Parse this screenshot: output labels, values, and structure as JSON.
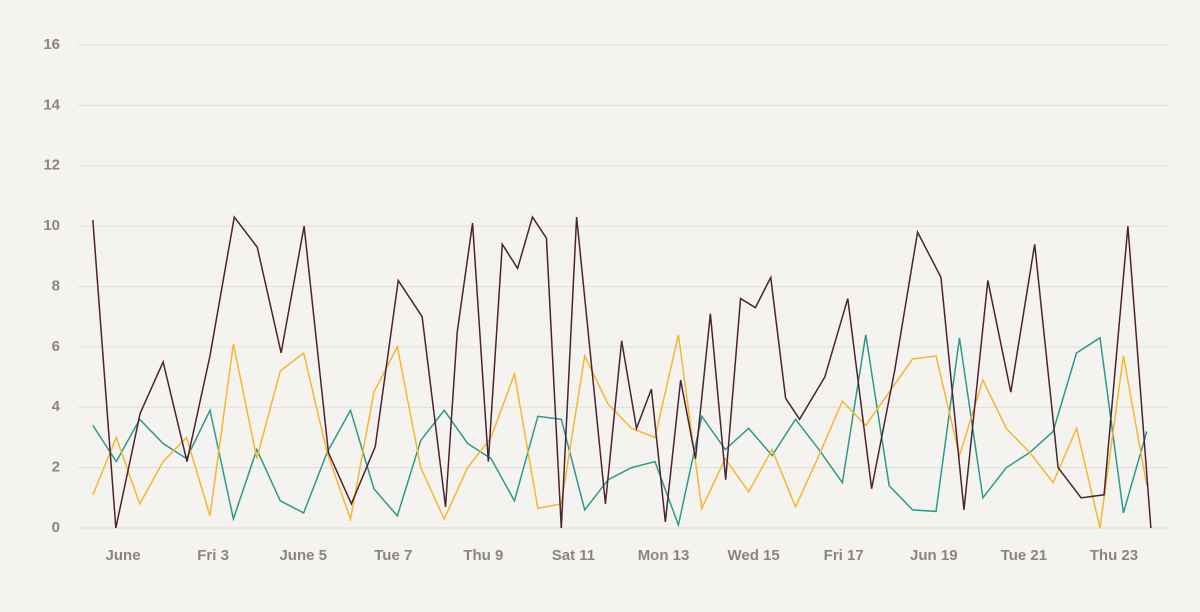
{
  "chart_data": {
    "type": "line",
    "xlim": [
      0,
      24.2
    ],
    "xticks": [
      {
        "value": 1,
        "label": "June"
      },
      {
        "value": 3,
        "label": "Fri 3"
      },
      {
        "value": 5,
        "label": "June 5"
      },
      {
        "value": 7,
        "label": "Tue 7"
      },
      {
        "value": 9,
        "label": "Thu 9"
      },
      {
        "value": 11,
        "label": "Sat 11"
      },
      {
        "value": 13,
        "label": "Mon 13"
      },
      {
        "value": 15,
        "label": "Wed 15"
      },
      {
        "value": 17,
        "label": "Fri 17"
      },
      {
        "value": 19,
        "label": "Jun 19"
      },
      {
        "value": 21,
        "label": "Tue 21"
      },
      {
        "value": 23,
        "label": "Thu 23"
      }
    ],
    "ylim": [
      0,
      16
    ],
    "yticks": [
      0,
      2,
      4,
      6,
      8,
      10,
      12,
      14,
      16
    ],
    "grid": true,
    "series": [
      {
        "color": "#2a9a8c",
        "x": [
          0.33,
          0.85,
          1.37,
          1.89,
          2.41,
          2.93,
          3.45,
          3.97,
          4.49,
          5.01,
          5.53,
          6.05,
          6.57,
          7.09,
          7.61,
          8.13,
          8.65,
          9.17,
          9.69,
          10.21,
          10.73,
          11.25,
          11.77,
          12.29,
          12.81,
          13.33,
          13.85,
          14.37,
          14.89,
          15.41,
          15.93,
          16.45,
          16.97,
          17.49,
          18.01,
          18.53,
          19.05,
          19.57,
          20.09,
          20.61,
          21.13,
          21.65,
          22.17,
          22.69,
          23.21,
          23.73
        ],
        "values": [
          3.4,
          2.2,
          3.6,
          2.8,
          2.3,
          3.9,
          0.3,
          2.6,
          0.9,
          0.5,
          2.5,
          3.9,
          1.3,
          0.4,
          2.9,
          3.9,
          2.8,
          2.3,
          0.9,
          3.7,
          3.6,
          0.6,
          1.6,
          2.0,
          2.2,
          0.1,
          3.7,
          2.6,
          3.3,
          2.4,
          3.6,
          2.6,
          1.5,
          6.4,
          1.4,
          0.6,
          0.55,
          6.3,
          1.0,
          2.0,
          2.5,
          3.2,
          5.8,
          6.3,
          0.5,
          3.2
        ]
      },
      {
        "color": "#f4b731",
        "x": [
          0.33,
          0.85,
          1.37,
          1.89,
          2.41,
          2.93,
          3.45,
          3.97,
          4.49,
          5.01,
          5.53,
          6.05,
          6.57,
          7.09,
          7.61,
          8.13,
          8.65,
          9.17,
          9.69,
          10.21,
          10.73,
          11.25,
          11.77,
          12.29,
          12.81,
          13.33,
          13.85,
          14.37,
          14.89,
          15.41,
          15.93,
          16.45,
          16.97,
          17.49,
          18.01,
          18.53,
          19.05,
          19.57,
          20.09,
          20.61,
          21.13,
          21.65,
          22.17,
          22.69,
          23.21,
          23.73
        ],
        "values": [
          1.1,
          3.0,
          0.8,
          2.2,
          3.0,
          0.4,
          6.1,
          2.3,
          5.2,
          5.8,
          2.5,
          0.3,
          4.5,
          6.0,
          2.0,
          0.3,
          2.0,
          3.0,
          5.1,
          0.65,
          0.8,
          5.7,
          4.1,
          3.3,
          3.0,
          6.4,
          0.65,
          2.3,
          1.2,
          2.6,
          0.7,
          2.4,
          4.2,
          3.4,
          4.5,
          5.6,
          5.7,
          2.4,
          4.9,
          3.3,
          2.5,
          1.5,
          3.3,
          0,
          5.7,
          1.4
        ]
      },
      {
        "color": "#4a2430",
        "x": [
          0.33,
          0.84,
          1.38,
          1.89,
          2.42,
          2.93,
          3.47,
          3.98,
          4.51,
          5.02,
          5.56,
          6.07,
          6.6,
          7.11,
          7.64,
          8.16,
          8.42,
          8.76,
          9.11,
          9.42,
          9.76,
          10.09,
          10.4,
          10.73,
          11.07,
          11.71,
          12.07,
          12.4,
          12.73,
          13.04,
          13.38,
          13.71,
          14.04,
          14.38,
          14.71,
          15.04,
          15.38,
          15.71,
          16.02,
          16.58,
          17.09,
          17.62,
          18.13,
          18.64,
          19.16,
          19.67,
          20.2,
          20.71,
          21.24,
          21.76,
          22.27,
          22.78,
          23.31,
          23.82
        ],
        "values": [
          10.2,
          0,
          3.8,
          5.5,
          2.2,
          5.7,
          10.3,
          9.3,
          5.8,
          10.0,
          2.5,
          0.8,
          2.7,
          8.2,
          7.0,
          0.7,
          6.5,
          10.1,
          2.2,
          9.4,
          8.6,
          10.3,
          9.6,
          0,
          10.3,
          0.8,
          6.2,
          3.3,
          4.6,
          0.2,
          4.9,
          2.3,
          7.1,
          1.6,
          7.6,
          7.3,
          8.3,
          4.3,
          3.6,
          5.0,
          7.6,
          1.3,
          5.2,
          9.8,
          8.3,
          0.6,
          8.2,
          4.5,
          9.4,
          2.0,
          1.0,
          1.1,
          10.0,
          0
        ]
      }
    ]
  }
}
